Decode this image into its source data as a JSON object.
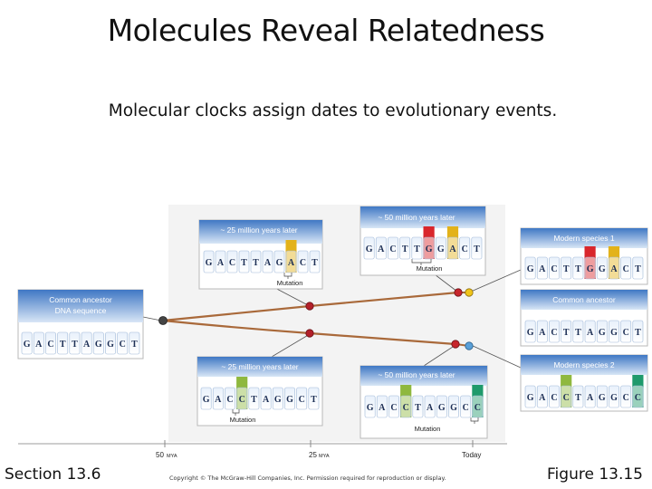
{
  "slide": {
    "title": "Molecules Reveal Relatedness",
    "subtitle": "Molecular clocks assign dates to evolutionary events.",
    "section": "Section 13.6",
    "figure_ref": "Figure 13.15",
    "copyright": "Copyright © The McGraw-Hill Companies, Inc. Permission required for reproduction or display."
  },
  "colors": {
    "band_blue": "#5b8ed1",
    "mutation_yellow": "#e3b21a",
    "mutation_red": "#d9262c",
    "mutation_green": "#8fb83e",
    "mutation_teal": "#1f9a6b",
    "branch_brown": "#a9693a"
  },
  "figure": {
    "ancestor": {
      "label_line1": "Common ancestor",
      "label_line2": "DNA sequence",
      "sequence": "GACTTAGGCT"
    },
    "upper_25": {
      "label": "~ 25 million years later",
      "sequence": "GACTTAGACT",
      "mutation_label": "Mutation"
    },
    "upper_50": {
      "label": "~ 50 million years later",
      "sequence": "GACTTGGACT",
      "mutation_label": "Mutation"
    },
    "lower_25": {
      "label": "~ 25 million years later",
      "sequence": "GACCTAGGCT",
      "mutation_label": "Mutation"
    },
    "lower_50": {
      "label": "~ 50 million years later",
      "sequence": "GACCTAGGCC",
      "mutation_label": "Mutation"
    },
    "right_species1": {
      "label": "Modern species 1",
      "sequence": "GACTTGGACT"
    },
    "right_common": {
      "label": "Common ancestor",
      "sequence": "GACTTAGGCT"
    },
    "right_species2": {
      "label": "Modern species 2",
      "sequence": "GACCTAGGCC"
    },
    "timeline": {
      "tick_50": "50",
      "tick_25": "25",
      "unit": "MYA",
      "tick_today": "Today"
    }
  }
}
